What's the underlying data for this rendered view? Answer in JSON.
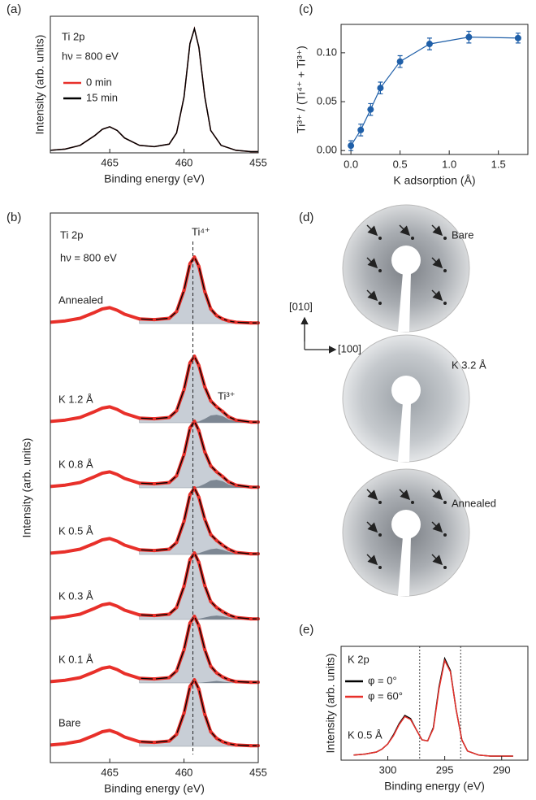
{
  "chart_data": [
    {
      "type": "line",
      "panel_label": "(a)",
      "xlabel": "Binding energy (eV)",
      "ylabel": "Intensity (arb. units)",
      "annotations": [
        "Ti 2p",
        "hν = 800 eV"
      ],
      "x": [
        469,
        468,
        467,
        466,
        465.5,
        465,
        464.5,
        464,
        463,
        462,
        461,
        460.5,
        460,
        459.6,
        459.3,
        459,
        458.6,
        458.2,
        457.5,
        456.5,
        455.5,
        455
      ],
      "series": [
        {
          "name": "0 min",
          "color": "#e8302a",
          "values": [
            0.02,
            0.03,
            0.06,
            0.14,
            0.19,
            0.21,
            0.18,
            0.12,
            0.06,
            0.05,
            0.07,
            0.16,
            0.45,
            0.88,
            1.0,
            0.85,
            0.45,
            0.18,
            0.06,
            0.02,
            0.01,
            0.01
          ]
        },
        {
          "name": "15 min",
          "color": "#000000",
          "values": [
            0.02,
            0.03,
            0.06,
            0.14,
            0.19,
            0.21,
            0.18,
            0.12,
            0.06,
            0.05,
            0.07,
            0.16,
            0.45,
            0.88,
            1.0,
            0.85,
            0.45,
            0.18,
            0.06,
            0.02,
            0.01,
            0.01
          ]
        }
      ],
      "xlim": [
        469,
        455
      ],
      "xticks": [
        465,
        460,
        455
      ],
      "ylim": [
        0,
        1.1
      ]
    },
    {
      "type": "scatter",
      "panel_label": "(c)",
      "xlabel": "K adsorption (Å)",
      "ylabel": "Ti³⁺ / (Ti⁴⁺ + Ti³⁺)",
      "x": [
        0,
        0.1,
        0.2,
        0.3,
        0.5,
        0.8,
        1.2,
        1.7
      ],
      "values": [
        0.005,
        0.021,
        0.042,
        0.064,
        0.091,
        0.109,
        0.116,
        0.115
      ],
      "errors": [
        0.005,
        0.006,
        0.006,
        0.006,
        0.006,
        0.006,
        0.006,
        0.005
      ],
      "color": "#1f5fa8",
      "xlim": [
        -0.1,
        1.8
      ],
      "xticks": [
        {
          "value": 0,
          "label": "0.0"
        },
        {
          "value": 0.5,
          "label": "0.5"
        },
        {
          "value": 1,
          "label": "1.0"
        },
        {
          "value": 1.5,
          "label": "1.5"
        }
      ],
      "ylim": [
        -0.004,
        0.129
      ],
      "yticks": [
        {
          "value": 0,
          "label": "0.00"
        },
        {
          "value": 0.05,
          "label": "0.05"
        },
        {
          "value": 0.1,
          "label": "0.10"
        }
      ]
    },
    {
      "type": "waterfall",
      "panel_label": "(b)",
      "xlabel": "Binding energy (eV)",
      "ylabel": "Intensity (arb. units)",
      "annotations": [
        "Ti 2p",
        "hν = 800 eV",
        "Ti⁴⁺",
        "Ti³⁺"
      ],
      "x": [
        469,
        468,
        467,
        466,
        465.5,
        465,
        464.5,
        464,
        463,
        462,
        461,
        460.5,
        460,
        459.6,
        459.3,
        459,
        458.6,
        458.2,
        457.8,
        457.4,
        457,
        456.5,
        455.5,
        455
      ],
      "fit_range": [
        463,
        455
      ],
      "peak_line": 459.4,
      "data_color": "#e8302a",
      "fit_color": "#000000",
      "component_color": "#c8ced6",
      "ti3_color": "#7d8793",
      "spectra": [
        {
          "name": "Annealed",
          "values": [
            0.02,
            0.04,
            0.08,
            0.17,
            0.22,
            0.24,
            0.2,
            0.14,
            0.07,
            0.06,
            0.08,
            0.18,
            0.5,
            0.9,
            1.0,
            0.86,
            0.48,
            0.22,
            0.12,
            0.07,
            0.04,
            0.02,
            0.01,
            0.01
          ]
        },
        {
          "name": "K 1.2 Å",
          "values": [
            0.02,
            0.04,
            0.08,
            0.17,
            0.22,
            0.24,
            0.2,
            0.14,
            0.07,
            0.06,
            0.08,
            0.18,
            0.5,
            0.9,
            1.0,
            0.86,
            0.54,
            0.33,
            0.24,
            0.17,
            0.09,
            0.04,
            0.01,
            0.01
          ],
          "ti3": [
            null,
            null,
            null,
            null,
            null,
            null,
            null,
            null,
            0,
            0,
            0,
            0,
            0,
            0,
            0.01,
            0.02,
            0.06,
            0.11,
            0.12,
            0.1,
            0.05,
            0.02,
            0,
            0
          ]
        },
        {
          "name": "K 0.8 Å",
          "values": [
            0.02,
            0.04,
            0.08,
            0.17,
            0.22,
            0.24,
            0.2,
            0.14,
            0.07,
            0.06,
            0.08,
            0.18,
            0.5,
            0.9,
            1.0,
            0.86,
            0.54,
            0.33,
            0.24,
            0.17,
            0.09,
            0.04,
            0.01,
            0.01
          ],
          "ti3": [
            null,
            null,
            null,
            null,
            null,
            null,
            null,
            null,
            0,
            0,
            0,
            0,
            0,
            0,
            0.01,
            0.02,
            0.06,
            0.11,
            0.12,
            0.1,
            0.05,
            0.02,
            0,
            0
          ]
        },
        {
          "name": "K 0.5 Å",
          "values": [
            0.02,
            0.04,
            0.08,
            0.17,
            0.22,
            0.24,
            0.2,
            0.14,
            0.07,
            0.06,
            0.08,
            0.18,
            0.5,
            0.9,
            1.0,
            0.86,
            0.53,
            0.3,
            0.21,
            0.14,
            0.08,
            0.03,
            0.01,
            0.01
          ],
          "ti3": [
            null,
            null,
            null,
            null,
            null,
            null,
            null,
            null,
            0,
            0,
            0,
            0,
            0,
            0,
            0.01,
            0.02,
            0.05,
            0.08,
            0.09,
            0.07,
            0.04,
            0.01,
            0,
            0
          ]
        },
        {
          "name": "K 0.3 Å",
          "values": [
            0.02,
            0.04,
            0.08,
            0.17,
            0.22,
            0.24,
            0.2,
            0.14,
            0.07,
            0.06,
            0.08,
            0.18,
            0.5,
            0.9,
            1.0,
            0.86,
            0.51,
            0.27,
            0.18,
            0.12,
            0.07,
            0.03,
            0.01,
            0.01
          ],
          "ti3": [
            null,
            null,
            null,
            null,
            null,
            null,
            null,
            null,
            0,
            0,
            0,
            0,
            0,
            0,
            0,
            0.01,
            0.03,
            0.05,
            0.06,
            0.05,
            0.03,
            0.01,
            0,
            0
          ]
        },
        {
          "name": "K 0.1 Å",
          "values": [
            0.02,
            0.04,
            0.08,
            0.17,
            0.22,
            0.24,
            0.2,
            0.14,
            0.07,
            0.06,
            0.08,
            0.18,
            0.5,
            0.9,
            1.0,
            0.86,
            0.5,
            0.25,
            0.15,
            0.09,
            0.05,
            0.02,
            0.01,
            0.01
          ],
          "ti3": [
            null,
            null,
            null,
            null,
            null,
            null,
            null,
            null,
            0,
            0,
            0,
            0,
            0,
            0,
            0,
            0,
            0.01,
            0.02,
            0.03,
            0.02,
            0.01,
            0,
            0,
            0
          ]
        },
        {
          "name": "Bare",
          "values": [
            0.02,
            0.04,
            0.08,
            0.17,
            0.22,
            0.24,
            0.2,
            0.14,
            0.07,
            0.06,
            0.08,
            0.18,
            0.5,
            0.9,
            1.0,
            0.86,
            0.48,
            0.22,
            0.12,
            0.07,
            0.04,
            0.02,
            0.01,
            0.01
          ]
        }
      ],
      "xlim": [
        469,
        455
      ],
      "xticks": [
        465,
        460,
        455
      ],
      "ylim": [
        0,
        1.1
      ]
    },
    {
      "type": "image",
      "panel_label": "(d)",
      "labels": [
        "Bare",
        "K 3.2 Å",
        "Annealed"
      ],
      "axes": [
        "[010]",
        "[100]"
      ]
    },
    {
      "type": "line",
      "panel_label": "(e)",
      "xlabel": "Binding energy (eV)",
      "ylabel": "Intensity (arb. units)",
      "annotations": [
        "K 2p",
        "K 0.5 Å"
      ],
      "x": [
        303,
        302,
        301,
        300.5,
        300,
        299.5,
        299,
        298.5,
        298,
        297.5,
        297,
        296.5,
        296,
        295.5,
        295,
        294.5,
        294,
        293.5,
        293,
        292,
        291,
        290,
        289
      ],
      "series": [
        {
          "name": "φ = 0°",
          "color": "#000000",
          "values": [
            0.05,
            0.06,
            0.08,
            0.11,
            0.16,
            0.25,
            0.36,
            0.44,
            0.41,
            0.3,
            0.2,
            0.19,
            0.32,
            0.72,
            1.0,
            0.88,
            0.5,
            0.2,
            0.09,
            0.05,
            0.04,
            0.04,
            0.04
          ]
        },
        {
          "name": "φ = 60°",
          "color": "#e8302a",
          "values": [
            0.05,
            0.06,
            0.08,
            0.11,
            0.16,
            0.24,
            0.35,
            0.43,
            0.4,
            0.3,
            0.2,
            0.19,
            0.31,
            0.7,
            0.98,
            0.87,
            0.5,
            0.2,
            0.09,
            0.05,
            0.04,
            0.04,
            0.04
          ]
        }
      ],
      "vlines": [
        297.2,
        293.6
      ],
      "xlim": [
        304.1,
        287.7
      ],
      "xticks": [
        300,
        295,
        290
      ],
      "ylim": [
        0,
        1.12
      ]
    }
  ]
}
